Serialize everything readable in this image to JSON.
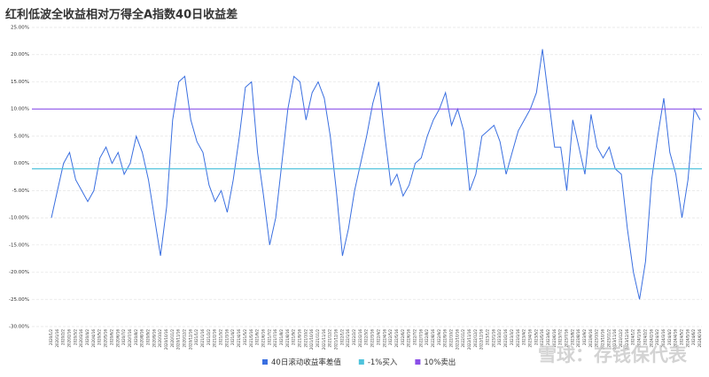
{
  "chart_data": {
    "type": "line",
    "title": "红利低波全收益相对万得全A指数40日收益差",
    "categories": [
      "2020/1/2",
      "2020/1/16",
      "2020/2/2",
      "2020/2/16",
      "2020/3/2",
      "2020/3/16",
      "2020/4/2",
      "2020/4/16",
      "2020/5/2",
      "2020/5/16",
      "2020/6/2",
      "2020/6/16",
      "2020/7/2",
      "2020/7/16",
      "2020/8/2",
      "2020/8/16",
      "2020/9/2",
      "2020/9/16",
      "2020/10/2",
      "2020/10/16",
      "2020/11/2",
      "2020/11/16",
      "2020/12/2",
      "2020/12/16",
      "2021/1/2",
      "2021/1/16",
      "2021/2/2",
      "2021/2/16",
      "2021/3/2",
      "2021/3/16",
      "2021/4/2",
      "2021/4/16",
      "2021/5/2",
      "2021/5/16",
      "2021/6/2",
      "2021/6/16",
      "2021/7/2",
      "2021/7/16",
      "2021/8/2",
      "2021/8/16",
      "2021/9/2",
      "2021/9/16",
      "2021/10/2",
      "2021/10/16",
      "2021/11/2",
      "2021/11/16",
      "2021/12/2",
      "2021/12/16",
      "2022/1/2",
      "2022/1/16",
      "2022/2/2",
      "2022/2/16",
      "2022/3/2",
      "2022/3/16",
      "2022/4/2",
      "2022/4/16",
      "2022/5/2",
      "2022/5/16",
      "2022/6/2",
      "2022/6/16",
      "2022/7/2",
      "2022/7/16",
      "2022/8/2",
      "2022/8/16",
      "2022/9/2",
      "2022/9/16",
      "2022/10/2",
      "2022/10/16",
      "2022/11/2",
      "2022/11/16",
      "2022/12/2",
      "2022/12/16",
      "2023/1/2",
      "2023/1/16",
      "2023/2/2",
      "2023/2/16",
      "2023/3/2",
      "2023/3/16",
      "2023/4/2",
      "2023/4/16",
      "2023/5/2",
      "2023/5/16",
      "2023/6/2",
      "2023/6/16",
      "2023/7/2",
      "2023/7/16",
      "2023/8/2",
      "2023/8/16",
      "2023/9/2",
      "2023/9/16",
      "2023/10/2",
      "2023/10/16",
      "2023/11/2",
      "2023/11/16",
      "2023/12/2",
      "2023/12/16",
      "2024/1/2",
      "2024/1/16",
      "2024/2/2",
      "2024/2/16",
      "2024/3/2",
      "2024/3/16",
      "2024/4/2",
      "2024/4/16",
      "2024/5/2",
      "2024/5/16",
      "2024/6/2",
      "2024/6/16"
    ],
    "series": [
      {
        "name": "40日滚动收益率差值",
        "color": "#3a6fe0",
        "values": [
          -10,
          -5,
          0,
          2,
          -3,
          -5,
          -7,
          -5,
          1,
          3,
          0,
          2,
          -2,
          0,
          5,
          2,
          -3,
          -10,
          -17,
          -8,
          8,
          15,
          16,
          8,
          4,
          2,
          -4,
          -7,
          -5,
          -9,
          -3,
          5,
          14,
          15,
          2,
          -6,
          -15,
          -10,
          0,
          10,
          16,
          15,
          8,
          13,
          15,
          12,
          5,
          -5,
          -17,
          -12,
          -5,
          0,
          5,
          11,
          15,
          5,
          -4,
          -2,
          -6,
          -4,
          0,
          1,
          5,
          8,
          10,
          13,
          7,
          10,
          6,
          -5,
          -2,
          5,
          6,
          7,
          4,
          -2,
          2,
          6,
          8,
          10,
          13,
          21,
          12,
          3,
          3,
          -5,
          8,
          3,
          -2,
          9,
          3,
          1,
          3,
          -1,
          -2,
          -12,
          -20,
          -25,
          -18,
          -3,
          5,
          12,
          2,
          -2,
          -10,
          -3,
          10,
          8
        ]
      }
    ],
    "reference_lines": [
      {
        "name": "-1%买入",
        "value": -1,
        "color": "#4fc3dc"
      },
      {
        "name": "10%卖出",
        "value": 10,
        "color": "#8a4fe8"
      }
    ],
    "ylim": [
      -30,
      25
    ],
    "yticks": [
      {
        "value": -30,
        "label": "-30.00%"
      },
      {
        "value": -25,
        "label": "-25.00%"
      },
      {
        "value": -20,
        "label": "-20.00%"
      },
      {
        "value": -15,
        "label": "-15.00%"
      },
      {
        "value": -10,
        "label": "-10.00%"
      },
      {
        "value": -5,
        "label": "-5.00%"
      },
      {
        "value": 0,
        "label": "0.00%"
      },
      {
        "value": 5,
        "label": "5.00%"
      },
      {
        "value": 10,
        "label": "10.00%"
      },
      {
        "value": 15,
        "label": "15.00%"
      },
      {
        "value": 20,
        "label": "20.00%"
      },
      {
        "value": 25,
        "label": "25.00%"
      }
    ],
    "grid": true,
    "watermark": "雪球：存钱保代表"
  }
}
